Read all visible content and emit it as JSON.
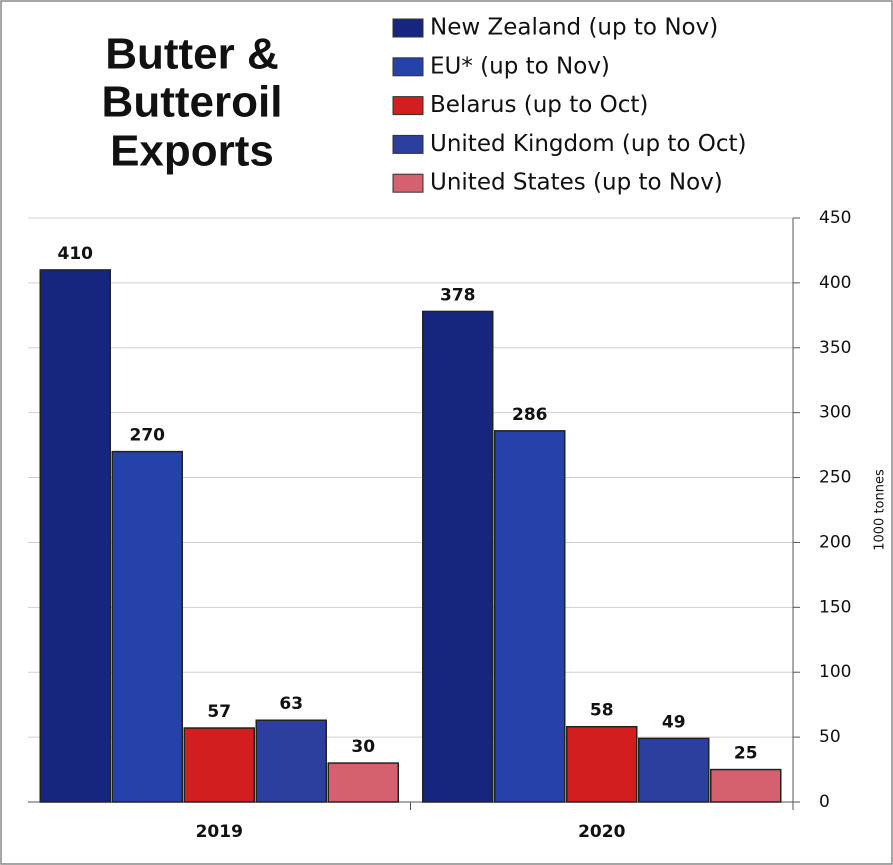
{
  "chart_data": {
    "type": "bar",
    "title": [
      "Butter &",
      "Butteroil",
      "Exports"
    ],
    "categories": [
      "2019",
      "2020"
    ],
    "series": [
      {
        "name": "New Zealand (up to Nov)",
        "color": "#16267e",
        "values": [
          410,
          378
        ]
      },
      {
        "name": "EU* (up to Nov)",
        "color": "#2542aa",
        "values": [
          270,
          286
        ]
      },
      {
        "name": "Belarus (up to Oct)",
        "color": "#d21e1e",
        "values": [
          57,
          58
        ]
      },
      {
        "name": "United Kingdom (up to Oct)",
        "color": "#2c3e9e",
        "values": [
          63,
          49
        ]
      },
      {
        "name": "United States (up to Nov)",
        "color": "#d5606e",
        "values": [
          30,
          25
        ]
      }
    ],
    "ylim": [
      0,
      450
    ],
    "yticks": [
      0,
      50,
      100,
      150,
      200,
      250,
      300,
      350,
      400,
      450
    ],
    "y_label": "1000 tonnes",
    "y_axis_side": "right",
    "grid": true,
    "legend": "top-right"
  }
}
